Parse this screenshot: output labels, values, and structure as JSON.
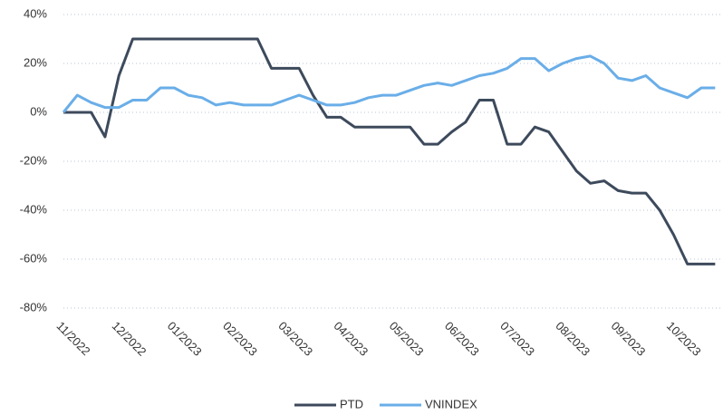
{
  "chart_data": {
    "type": "line",
    "categories": [
      "11/2022",
      null,
      null,
      null,
      "12/2022",
      null,
      null,
      null,
      "01/2023",
      null,
      null,
      null,
      "02/2023",
      null,
      null,
      null,
      "03/2023",
      null,
      null,
      null,
      "04/2023",
      null,
      null,
      null,
      "05/2023",
      null,
      null,
      null,
      "06/2023",
      null,
      null,
      null,
      "07/2023",
      null,
      null,
      null,
      "08/2023",
      null,
      null,
      null,
      "09/2023",
      null,
      null,
      null,
      "10/2023",
      null,
      null,
      null
    ],
    "series": [
      {
        "name": "PTD",
        "color": "#3d4a5c",
        "values": [
          0,
          0,
          0,
          -10,
          15,
          30,
          30,
          30,
          30,
          30,
          30,
          30,
          30,
          30,
          30,
          18,
          18,
          18,
          7,
          -2,
          -2,
          -6,
          -6,
          -6,
          -6,
          -6,
          -13,
          -13,
          -8,
          -4,
          5,
          5,
          -13,
          -13,
          -6,
          -8,
          -16,
          -24,
          -29,
          -28,
          -32,
          -33,
          -33,
          -40,
          -50,
          -62,
          -62,
          -62
        ]
      },
      {
        "name": "VNINDEX",
        "color": "#6aaee8",
        "values": [
          0,
          7,
          4,
          2,
          2,
          5,
          5,
          10,
          10,
          7,
          6,
          3,
          4,
          3,
          3,
          3,
          5,
          7,
          5,
          3,
          3,
          4,
          6,
          7,
          7,
          9,
          11,
          12,
          11,
          13,
          15,
          16,
          18,
          22,
          22,
          17,
          20,
          22,
          23,
          20,
          14,
          13,
          15,
          10,
          8,
          6,
          10,
          10
        ]
      }
    ],
    "ylim": [
      -80,
      40
    ],
    "yticks": [
      {
        "value": -80,
        "label": "-80%"
      },
      {
        "value": -60,
        "label": "-60%"
      },
      {
        "value": -40,
        "label": "-40%"
      },
      {
        "value": -20,
        "label": "-20%"
      },
      {
        "value": 0,
        "label": "0%"
      },
      {
        "value": 20,
        "label": "20%"
      },
      {
        "value": 40,
        "label": "40%"
      }
    ],
    "grid": true,
    "legend": "bottom"
  }
}
